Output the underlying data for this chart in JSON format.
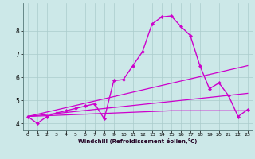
{
  "title": "",
  "xlabel": "Windchill (Refroidissement éolien,°C)",
  "ylabel": "",
  "bg_color": "#cce8e8",
  "grid_color": "#aacccc",
  "line_color": "#cc00cc",
  "xlim": [
    -0.5,
    23.5
  ],
  "ylim": [
    3.7,
    9.2
  ],
  "xticks": [
    0,
    1,
    2,
    3,
    4,
    5,
    6,
    7,
    8,
    9,
    10,
    11,
    12,
    13,
    14,
    15,
    16,
    17,
    18,
    19,
    20,
    21,
    22,
    23
  ],
  "yticks": [
    4,
    5,
    6,
    7,
    8
  ],
  "series": [
    {
      "x": [
        0,
        1,
        2,
        3,
        4,
        5,
        6,
        7,
        8,
        9,
        10,
        11,
        12,
        13,
        14,
        15,
        16,
        17,
        18,
        19,
        20,
        21,
        22,
        23
      ],
      "y": [
        4.3,
        4.0,
        4.3,
        4.45,
        4.55,
        4.65,
        4.75,
        4.85,
        4.2,
        5.85,
        5.9,
        6.5,
        7.1,
        8.3,
        8.6,
        8.65,
        8.2,
        7.8,
        6.5,
        5.5,
        5.75,
        5.2,
        4.3,
        4.6
      ],
      "marker": "D",
      "markersize": 2.2,
      "linewidth": 1.0,
      "has_marker": true
    },
    {
      "x": [
        0,
        23
      ],
      "y": [
        4.3,
        6.5
      ],
      "marker": null,
      "markersize": 0,
      "linewidth": 0.9,
      "has_marker": false
    },
    {
      "x": [
        0,
        23
      ],
      "y": [
        4.3,
        5.3
      ],
      "marker": null,
      "markersize": 0,
      "linewidth": 0.9,
      "has_marker": false
    },
    {
      "x": [
        0,
        15,
        23
      ],
      "y": [
        4.3,
        4.55,
        4.55
      ],
      "marker": null,
      "markersize": 0,
      "linewidth": 0.9,
      "has_marker": false
    }
  ]
}
